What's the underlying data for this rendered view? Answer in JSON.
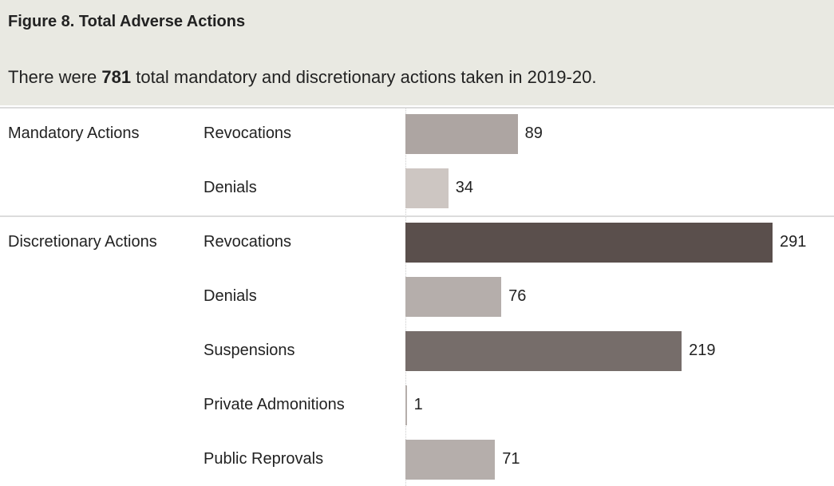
{
  "chart_data": {
    "type": "bar",
    "title": "Figure 8. Total Adverse Actions",
    "subtitle": [
      "There were ",
      "781",
      " total mandatory and discretionary actions taken in 2019-20."
    ],
    "groups": [
      {
        "name": "Mandatory Actions",
        "categories": [
          "Revocations",
          "Denials"
        ],
        "values": [
          89,
          34
        ],
        "colors": [
          "#ada5a2",
          "#cdc6c2"
        ]
      },
      {
        "name": "Discretionary Actions",
        "categories": [
          "Revocations",
          "Denials",
          "Suspensions",
          "Private Admonitions",
          "Public Reprovals"
        ],
        "values": [
          291,
          76,
          219,
          1,
          71
        ],
        "colors": [
          "#5a4f4c",
          "#b5aeab",
          "#766d6a",
          "#b5aeab",
          "#b5aeab"
        ]
      }
    ]
  }
}
